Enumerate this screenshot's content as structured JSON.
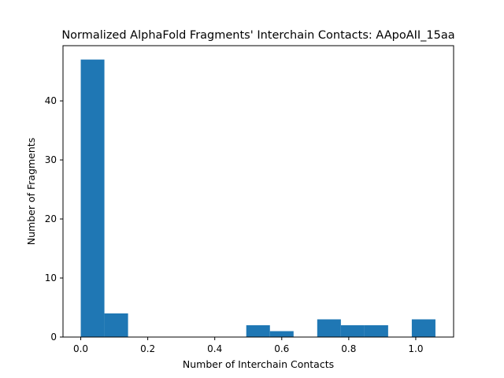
{
  "chart_data": {
    "type": "bar",
    "title": "Normalized AlphaFold Fragments' Interchain Contacts: AApoAII_15aa",
    "xlabel": "Number of Interchain Contacts",
    "ylabel": "Number of Fragments",
    "xlim": [
      -0.053,
      1.113
    ],
    "ylim": [
      0,
      49.35
    ],
    "xticks": [
      0.0,
      0.2,
      0.4,
      0.6,
      0.8,
      1.0
    ],
    "xtick_labels": [
      "0.0",
      "0.2",
      "0.4",
      "0.6",
      "0.8",
      "1.0"
    ],
    "yticks": [
      0,
      10,
      20,
      30,
      40
    ],
    "ytick_labels": [
      "0",
      "10",
      "20",
      "30",
      "40"
    ],
    "bin_edges": [
      0.0,
      0.0706,
      0.1412,
      0.2118,
      0.2824,
      0.3529,
      0.4235,
      0.4941,
      0.5647,
      0.6353,
      0.7059,
      0.7765,
      0.8471,
      0.9176,
      0.9882,
      1.0588
    ],
    "values": [
      47,
      4,
      0,
      0,
      0,
      0,
      0,
      2,
      1,
      0,
      3,
      2,
      2,
      0,
      3
    ],
    "grid": false,
    "colors": {
      "bar": "#1f77b4"
    }
  }
}
